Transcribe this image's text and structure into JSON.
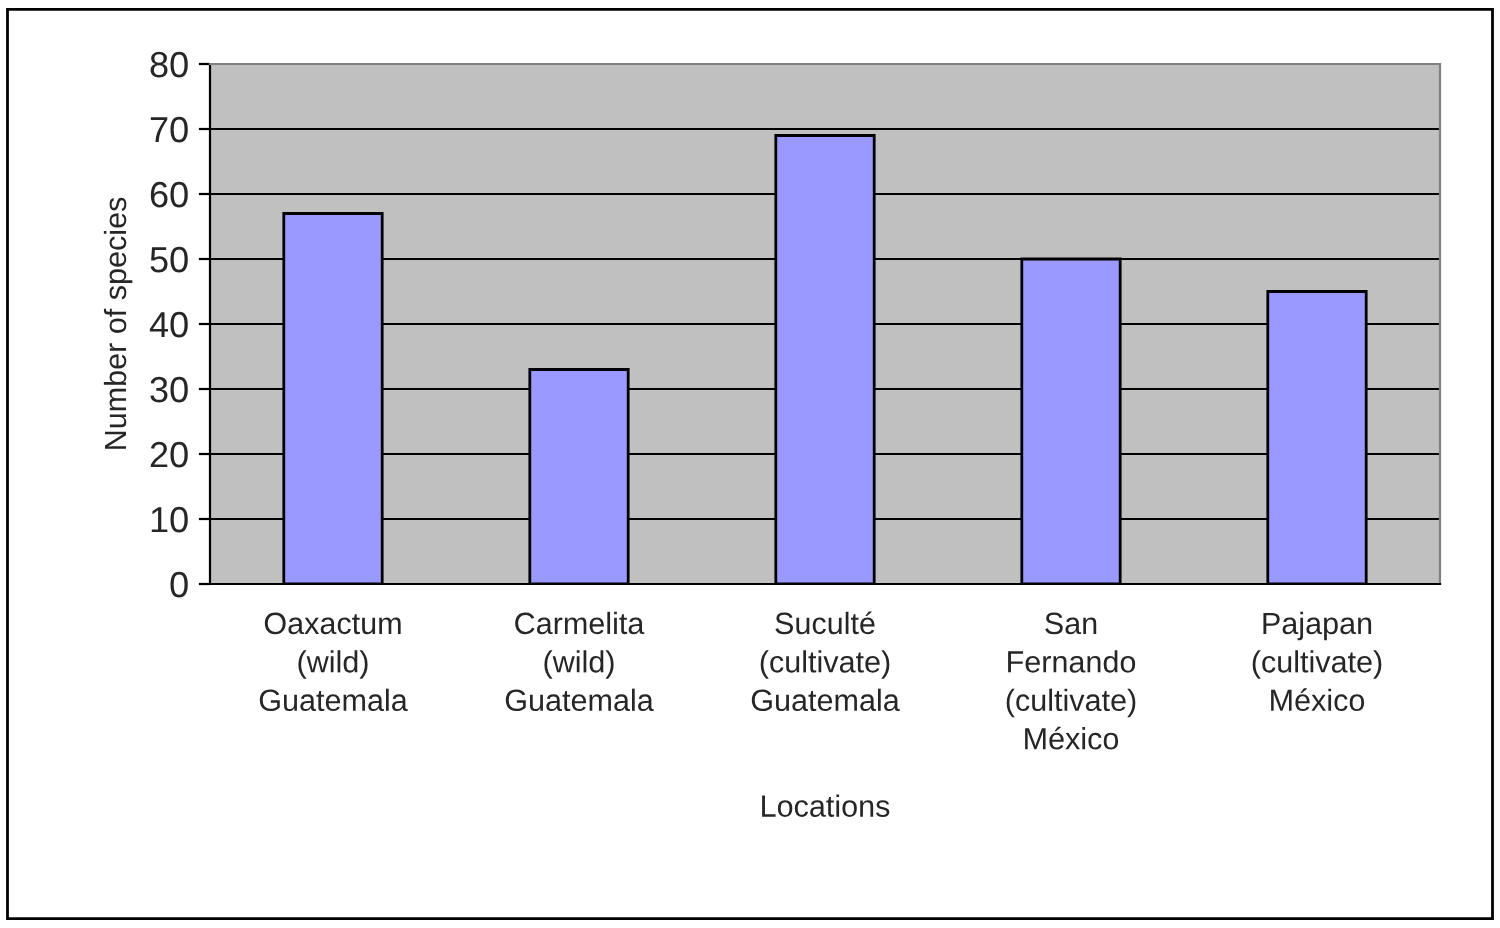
{
  "chart_data": {
    "type": "bar",
    "xlabel": "Locations",
    "ylabel": "Number of species",
    "categories": [
      "Oaxactum\n(wild)\nGuatemala",
      "Carmelita\n(wild)\nGuatemala",
      "Suculté\n(cultivate)\nGuatemala",
      "San\nFernando\n(cultivate)\nMéxico",
      "Pajapan\n(cultivate)\nMéxico"
    ],
    "values": [
      57,
      33,
      69,
      50,
      45
    ],
    "color": "#9999ff",
    "ylim": [
      0,
      80
    ],
    "yticks": [
      0,
      10,
      20,
      30,
      40,
      50,
      60,
      70,
      80
    ],
    "grid": "y",
    "legend": false
  }
}
